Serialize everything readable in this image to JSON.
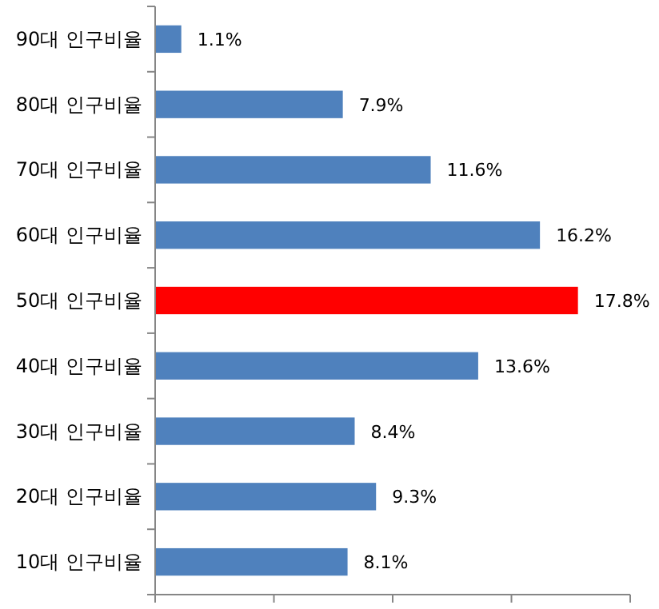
{
  "chart_data": {
    "type": "bar",
    "orientation": "horizontal",
    "categories": [
      "90대 인구비율",
      "80대 인구비율",
      "70대 인구비율",
      "60대 인구비율",
      "50대 인구비율",
      "40대 인구비율",
      "30대 인구비율",
      "20대 인구비율",
      "10대 인구비율"
    ],
    "values": [
      1.1,
      7.9,
      11.6,
      16.2,
      17.8,
      13.6,
      8.4,
      9.3,
      8.1
    ],
    "colors": [
      "#4f81bd",
      "#4f81bd",
      "#4f81bd",
      "#4f81bd",
      "#ff0000",
      "#4f81bd",
      "#4f81bd",
      "#4f81bd",
      "#4f81bd"
    ],
    "value_labels": [
      "1.1%",
      "7.9%",
      "11.6%",
      "16.2%",
      "17.8%",
      "13.6%",
      "8.4%",
      "9.3%",
      "8.1%"
    ],
    "xlim": [
      0,
      20
    ],
    "xticks": [
      {
        "value": 0,
        "label": null
      },
      {
        "value": 5,
        "label": null
      },
      {
        "value": 10,
        "label": null
      },
      {
        "value": 15,
        "label": null
      },
      {
        "value": 20,
        "label": null
      }
    ],
    "tick_labels": "y"
  }
}
